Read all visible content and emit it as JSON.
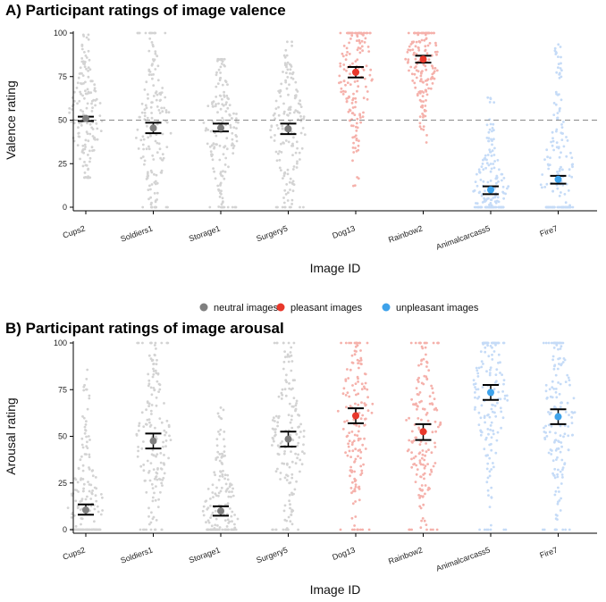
{
  "chart_data": [
    {
      "type": "scatter",
      "subtype": "beeswarm with mean and error bars",
      "title": "A) Participant ratings of image valence",
      "xlabel": "Image ID",
      "ylabel": "Valence rating",
      "ylim": [
        0,
        100
      ],
      "yticks": [
        0,
        25,
        50,
        75,
        100
      ],
      "reference_line": 50,
      "categories": [
        "Cups2",
        "Soldiers1",
        "Storage1",
        "Surgery5",
        "Dog13",
        "Rainbow2",
        "Animalcarcass5",
        "Fire7"
      ],
      "groups": [
        "neutral",
        "neutral",
        "neutral",
        "neutral",
        "pleasant",
        "pleasant",
        "unpleasant",
        "unpleasant"
      ],
      "means": [
        51,
        45.5,
        45.5,
        45,
        77.5,
        85,
        10,
        16
      ],
      "ci_low": [
        49.5,
        42.5,
        43.5,
        42,
        74.5,
        83,
        7.5,
        13.5
      ],
      "ci_high": [
        52,
        48.5,
        48,
        48,
        80.5,
        87,
        12,
        18
      ],
      "raw_range_min": [
        17,
        0,
        0,
        0,
        12,
        37,
        0,
        0
      ],
      "raw_range_max": [
        99,
        100,
        85,
        95,
        100,
        100,
        64,
        95
      ]
    },
    {
      "type": "scatter",
      "subtype": "beeswarm with mean and error bars",
      "title": "B) Participant ratings of image arousal",
      "xlabel": "Image ID",
      "ylabel": "Arousal rating",
      "ylim": [
        0,
        100
      ],
      "yticks": [
        0,
        25,
        50,
        75,
        100
      ],
      "categories": [
        "Cups2",
        "Soldiers1",
        "Storage1",
        "Surgery5",
        "Dog13",
        "Rainbow2",
        "Animalcarcass5",
        "Fire7"
      ],
      "groups": [
        "neutral",
        "neutral",
        "neutral",
        "neutral",
        "pleasant",
        "pleasant",
        "unpleasant",
        "unpleasant"
      ],
      "means": [
        10.5,
        47.5,
        10,
        48.5,
        61,
        52.5,
        73.5,
        60.5
      ],
      "ci_low": [
        8,
        43.5,
        7.5,
        44.5,
        57,
        48,
        69.5,
        56.5
      ],
      "ci_high": [
        13.5,
        51.5,
        12.5,
        52.5,
        65,
        56.5,
        77.5,
        64.5
      ],
      "raw_range_min": [
        0,
        0,
        0,
        0,
        0,
        0,
        0,
        0
      ],
      "raw_range_max": [
        87,
        100,
        73,
        100,
        100,
        100,
        100,
        100
      ]
    }
  ],
  "legend": {
    "position": "center",
    "items": [
      {
        "key": "neutral",
        "label": "neutral images",
        "color": "#7f7f7f"
      },
      {
        "key": "pleasant",
        "label": "pleasant images",
        "color": "#e8382b"
      },
      {
        "key": "unpleasant",
        "label": "unpleasant images",
        "color": "#3ea2ea"
      }
    ]
  },
  "colors": {
    "neutral_raw": "#d3d3d3",
    "pleasant_raw": "#f5b1ab",
    "unpleasant_raw": "#c5dbf7",
    "reference_line": "#8a8a8a",
    "error_bar": "#000000"
  }
}
